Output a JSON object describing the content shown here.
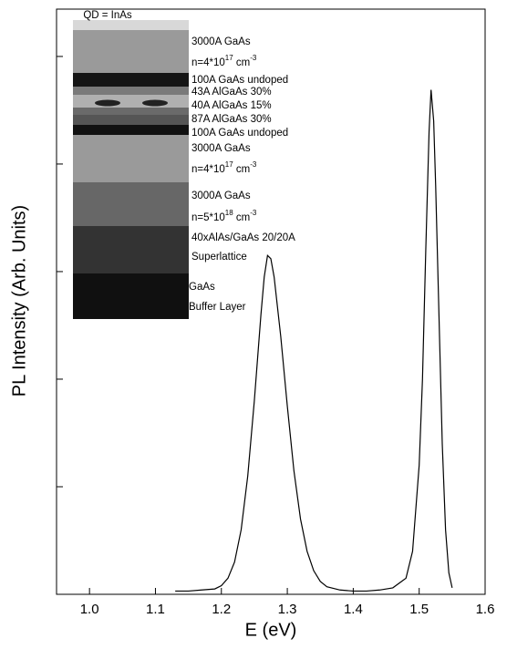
{
  "chart_data": {
    "type": "line",
    "x_label": "E (eV)",
    "y_label": "PL Intensity (Arb. Units)",
    "color": "#000000",
    "xlim": [
      0.95,
      1.6
    ],
    "xticks": [
      {
        "value": 1.0,
        "label": "1.0"
      },
      1.1,
      1.2,
      1.3,
      1.4,
      1.5,
      1.6
    ],
    "ylim": [
      0,
      5.44
    ],
    "yticks": [
      0,
      1,
      2,
      3,
      4,
      5
    ],
    "x": [
      1.13,
      1.15,
      1.17,
      1.19,
      1.2,
      1.21,
      1.22,
      1.23,
      1.24,
      1.25,
      1.26,
      1.265,
      1.27,
      1.275,
      1.28,
      1.29,
      1.3,
      1.31,
      1.32,
      1.33,
      1.34,
      1.35,
      1.36,
      1.38,
      1.4,
      1.42,
      1.44,
      1.46,
      1.48,
      1.49,
      1.5,
      1.505,
      1.51,
      1.515,
      1.518,
      1.522,
      1.525,
      1.53,
      1.535,
      1.54,
      1.545,
      1.55
    ],
    "values": [
      0.03,
      0.03,
      0.04,
      0.05,
      0.08,
      0.15,
      0.3,
      0.6,
      1.1,
      1.8,
      2.6,
      2.95,
      3.15,
      3.12,
      2.95,
      2.4,
      1.75,
      1.15,
      0.7,
      0.4,
      0.22,
      0.12,
      0.07,
      0.04,
      0.03,
      0.03,
      0.04,
      0.06,
      0.15,
      0.4,
      1.2,
      2.0,
      3.2,
      4.3,
      4.69,
      4.4,
      3.8,
      2.6,
      1.4,
      0.6,
      0.2,
      0.06
    ],
    "inset": {
      "title": "QD = InAs",
      "labels": [
        [
          "3000A GaAs"
        ],
        [
          "n=4*10",
          "17",
          " cm",
          "-3"
        ],
        [
          "100A GaAs undoped"
        ],
        [
          "43A AlGaAs 30%"
        ],
        [
          "40A AlGaAs 15%"
        ],
        [
          "87A AlGaAs 30%"
        ],
        [
          "100A GaAs undoped"
        ],
        [
          "3000A GaAs"
        ],
        [
          "n=4*10",
          "17",
          " cm",
          "-3"
        ],
        [
          "3000A GaAs"
        ],
        [
          "n=5*10",
          "18",
          " cm",
          "-3"
        ],
        [
          "40xAlAs/GaAs 20/20A"
        ],
        [
          "Superlattice"
        ],
        [
          "GaAs"
        ],
        [
          "Buffer Layer"
        ]
      ]
    }
  }
}
